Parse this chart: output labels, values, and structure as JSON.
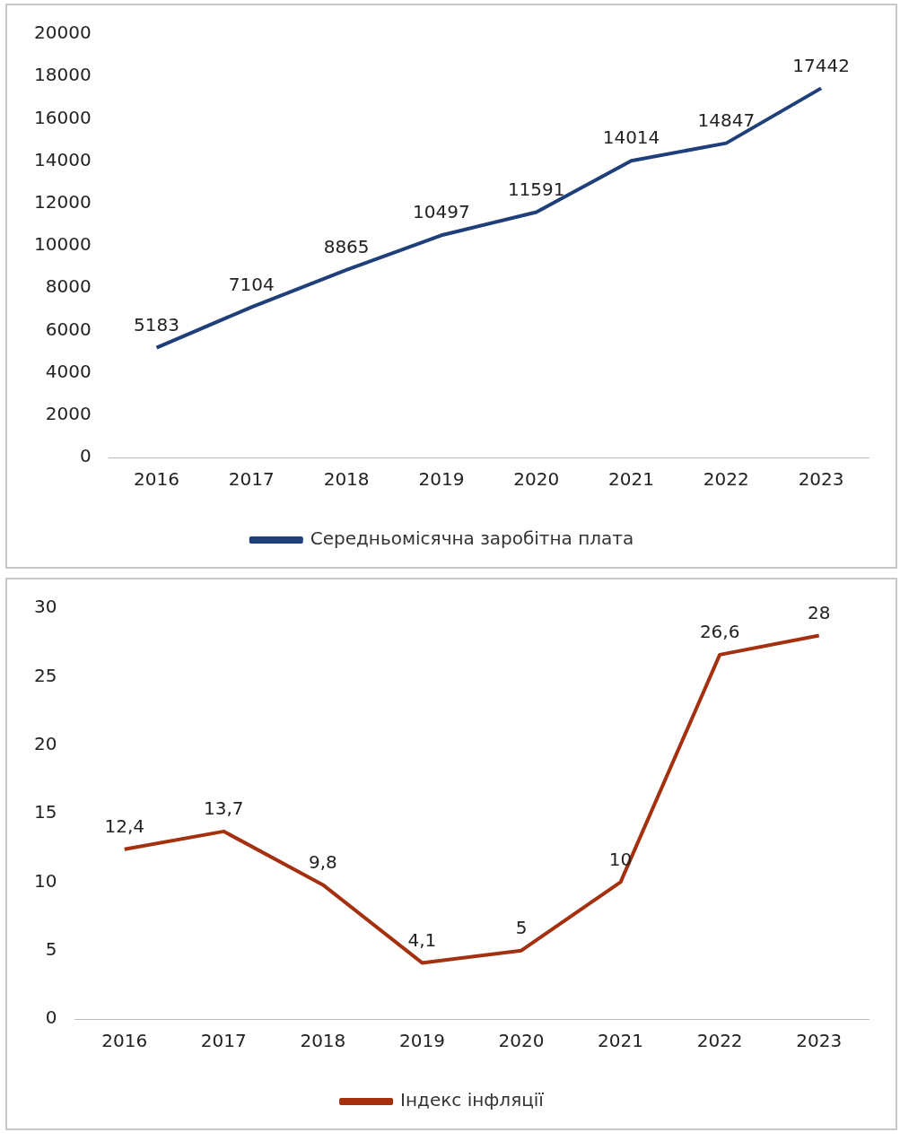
{
  "chart_data": [
    {
      "type": "line",
      "categories": [
        "2016",
        "2017",
        "2018",
        "2019",
        "2020",
        "2021",
        "2022",
        "2023"
      ],
      "series": [
        {
          "name": "Середньомісячна заробітна плата",
          "color": "#1f3f7a",
          "values": [
            5183,
            7104,
            8865,
            10497,
            11591,
            14014,
            14847,
            17442
          ]
        }
      ],
      "ylim": [
        0,
        20000
      ],
      "yticks": [
        0,
        2000,
        4000,
        6000,
        8000,
        10000,
        12000,
        14000,
        16000,
        18000,
        20000
      ],
      "data_labels": true,
      "legend": "bottom",
      "grid": false,
      "marker": "none"
    },
    {
      "type": "line",
      "categories": [
        "2016",
        "2017",
        "2018",
        "2019",
        "2020",
        "2021",
        "2022",
        "2023"
      ],
      "series": [
        {
          "name": "Індекс інфляції",
          "color": "#a4300f",
          "values": [
            12.4,
            13.7,
            9.8,
            4.1,
            5,
            10,
            26.6,
            28
          ],
          "value_labels": [
            "12,4",
            "13,7",
            "9,8",
            "4,1",
            "5",
            "10",
            "26,6",
            "28"
          ]
        }
      ],
      "ylim": [
        0,
        30
      ],
      "yticks": [
        0,
        5,
        10,
        15,
        20,
        25,
        30
      ],
      "legend": "bottom",
      "grid": false,
      "marker": "none"
    }
  ]
}
